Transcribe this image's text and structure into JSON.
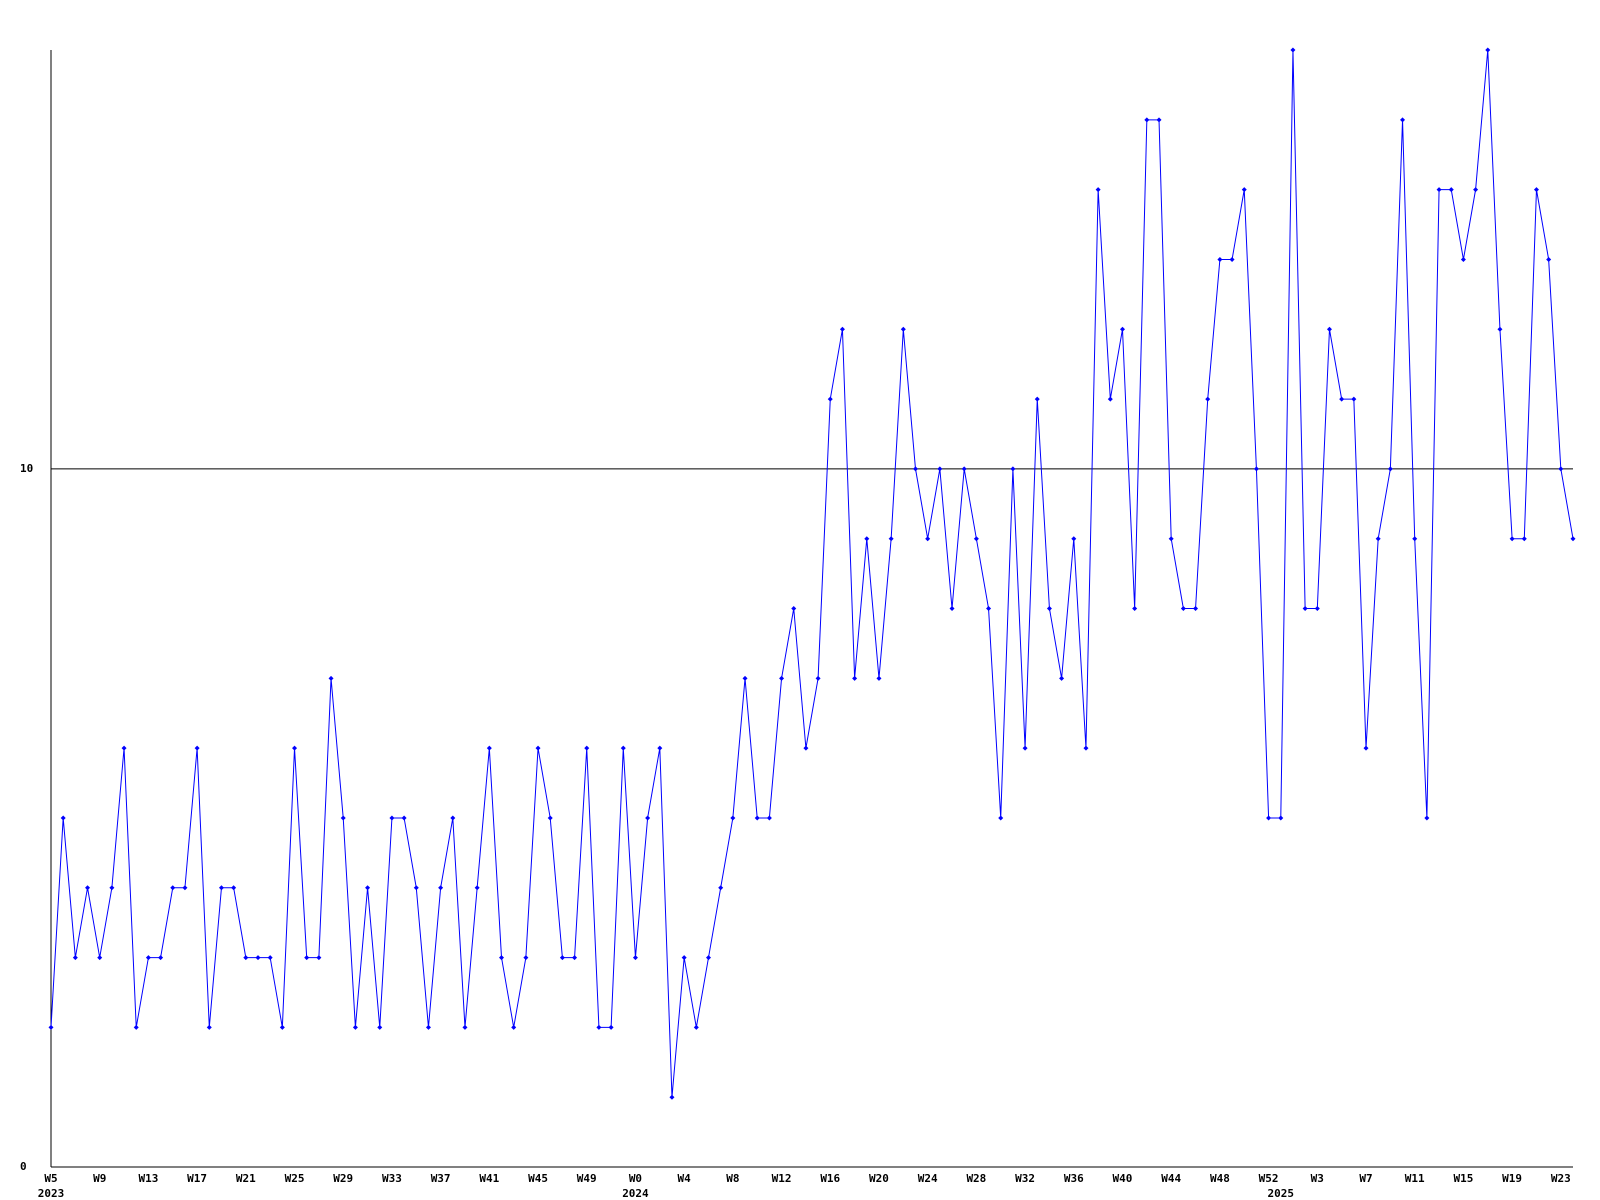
{
  "chart_data": {
    "type": "line",
    "color": "#0000ff",
    "ylim": [
      0,
      16
    ],
    "yticks": [
      0,
      10
    ],
    "grid": true,
    "categories": [
      "W5",
      null,
      null,
      null,
      "W9",
      null,
      null,
      null,
      "W13",
      null,
      null,
      null,
      "W17",
      null,
      null,
      null,
      "W21",
      null,
      null,
      null,
      "W25",
      null,
      null,
      null,
      "W29",
      null,
      null,
      null,
      "W33",
      null,
      null,
      null,
      "W37",
      null,
      null,
      null,
      "W41",
      null,
      null,
      null,
      "W45",
      null,
      null,
      null,
      "W49",
      null,
      null,
      null,
      "W0",
      null,
      null,
      null,
      "W4",
      null,
      null,
      null,
      "W8",
      null,
      null,
      null,
      "W12",
      null,
      null,
      null,
      "W16",
      null,
      null,
      null,
      "W20",
      null,
      null,
      null,
      "W24",
      null,
      null,
      null,
      "W28",
      null,
      null,
      null,
      "W32",
      null,
      null,
      null,
      "W36",
      null,
      null,
      null,
      "W40",
      null,
      null,
      null,
      "W44",
      null,
      null,
      null,
      "W48",
      null,
      null,
      null,
      "W52",
      null,
      null,
      null,
      "W3",
      null,
      null,
      null,
      "W7",
      null,
      null,
      null,
      "W11",
      null,
      null,
      null,
      "W15",
      null,
      null,
      null,
      "W19",
      null,
      null,
      null,
      "W23",
      null
    ],
    "category_years": [
      "2023",
      null,
      null,
      null,
      null,
      null,
      null,
      null,
      null,
      null,
      null,
      null,
      null,
      null,
      null,
      null,
      null,
      null,
      null,
      null,
      null,
      null,
      null,
      null,
      null,
      null,
      null,
      null,
      null,
      null,
      null,
      null,
      null,
      null,
      null,
      null,
      null,
      null,
      null,
      null,
      null,
      null,
      null,
      null,
      null,
      null,
      null,
      null,
      "2024",
      null,
      null,
      null,
      null,
      null,
      null,
      null,
      null,
      null,
      null,
      null,
      null,
      null,
      null,
      null,
      null,
      null,
      null,
      null,
      null,
      null,
      null,
      null,
      null,
      null,
      null,
      null,
      null,
      null,
      null,
      null,
      null,
      null,
      null,
      null,
      null,
      null,
      null,
      null,
      null,
      null,
      null,
      null,
      null,
      null,
      null,
      null,
      null,
      null,
      null,
      null,
      null,
      "2025",
      null,
      null,
      null,
      null,
      null,
      null,
      null,
      null,
      null,
      null,
      null,
      null,
      null,
      null,
      null,
      null,
      null,
      null,
      null,
      null,
      null,
      null,
      null,
      null
    ],
    "values": [
      2,
      5,
      3,
      4,
      3,
      4,
      6,
      2,
      3,
      3,
      4,
      4,
      6,
      2,
      4,
      4,
      3,
      3,
      3,
      2,
      6,
      3,
      3,
      7,
      5,
      2,
      4,
      2,
      5,
      5,
      4,
      2,
      4,
      5,
      2,
      4,
      6,
      3,
      2,
      3,
      6,
      5,
      3,
      3,
      6,
      2,
      2,
      6,
      3,
      5,
      6,
      1,
      3,
      2,
      3,
      4,
      5,
      7,
      5,
      5,
      7,
      8,
      6,
      7,
      11,
      12,
      7,
      9,
      7,
      9,
      12,
      10,
      9,
      10,
      8,
      10,
      9,
      8,
      5,
      10,
      6,
      11,
      8,
      7,
      9,
      6,
      14,
      11,
      12,
      8,
      15,
      15,
      9,
      8,
      8,
      11,
      13,
      13,
      14,
      10,
      5,
      5,
      16,
      8,
      8,
      12,
      11,
      11,
      6,
      9,
      10,
      15,
      9,
      5,
      14,
      14,
      13,
      14,
      16,
      12,
      9,
      9,
      14,
      13,
      10,
      9
    ]
  }
}
